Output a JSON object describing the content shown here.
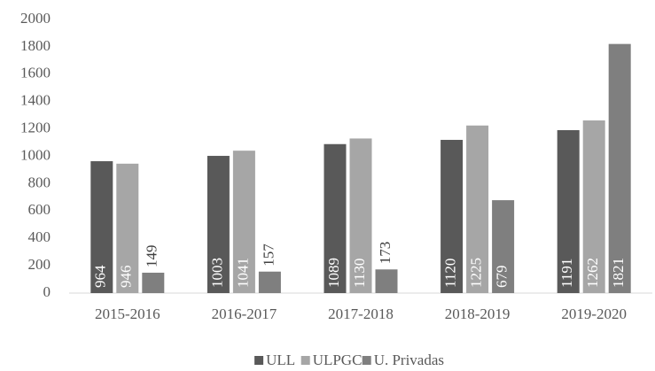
{
  "chart_data": {
    "type": "bar",
    "categories": [
      "2015-2016",
      "2016-2017",
      "2017-2018",
      "2018-2019",
      "2019-2020"
    ],
    "series": [
      {
        "name": "ULL",
        "color": "#595959",
        "values": [
          964,
          1003,
          1089,
          1120,
          1191
        ]
      },
      {
        "name": "ULPGC",
        "color": "#a6a6a6",
        "values": [
          946,
          1041,
          1130,
          1225,
          1262
        ]
      },
      {
        "name": "U. Privadas",
        "color": "#7f7f7f",
        "values": [
          149,
          157,
          173,
          679,
          1821
        ]
      }
    ],
    "ylim": [
      0,
      2000
    ],
    "yticks": [
      0,
      200,
      400,
      600,
      800,
      1000,
      1200,
      1400,
      1600,
      1800,
      2000
    ],
    "grid": false,
    "legend": "bottom"
  }
}
